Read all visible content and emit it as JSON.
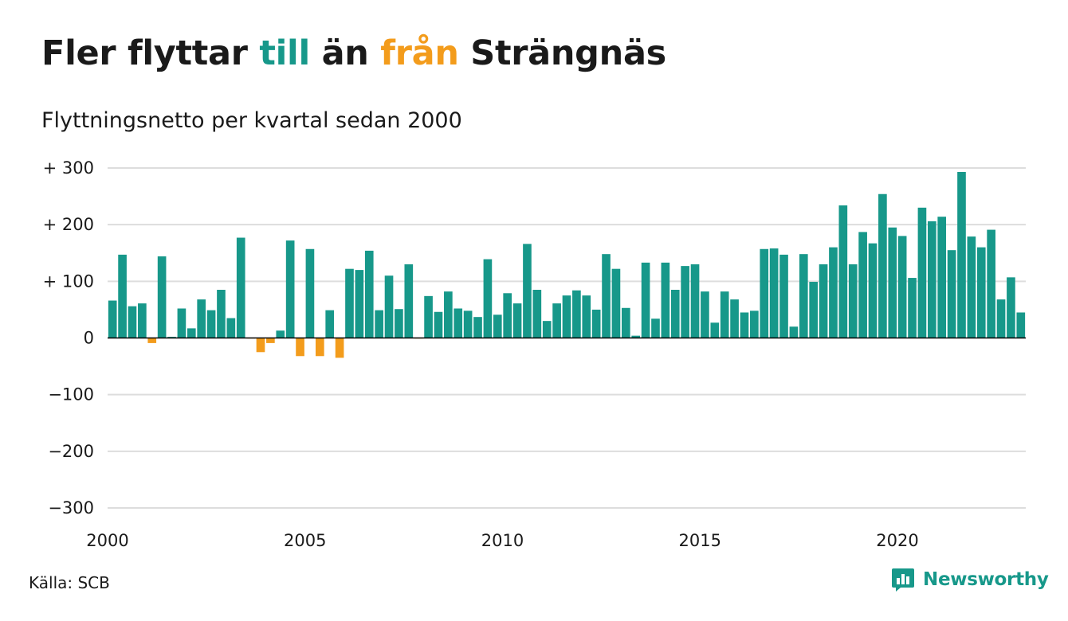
{
  "header": {
    "title_part1": "Fler flyttar ",
    "title_pos": "till",
    "title_part2": " än ",
    "title_neg": "från",
    "title_part3": " Strängnäs",
    "subtitle": "Flyttningsnetto per kvartal sedan 2000"
  },
  "footer": {
    "source": "Källa: SCB",
    "brand": "Newsworthy",
    "brand_icon": "newsworthy-logo-icon"
  },
  "colors": {
    "positive": "#17988a",
    "negative": "#f39c1c",
    "grid": "#dddddd",
    "axis": "#000000",
    "text": "#1a1a1a"
  },
  "chart_data": {
    "type": "bar",
    "title": "Fler flyttar till än från Strängnäs",
    "subtitle": "Flyttningsnetto per kvartal sedan 2000",
    "x_start": "2000 Q1",
    "x_ticks": [
      2000,
      2005,
      2010,
      2015,
      2020
    ],
    "ylim": [
      -300,
      300
    ],
    "y_ticks": [
      {
        "value": 300,
        "label": "+ 300"
      },
      {
        "value": 200,
        "label": "+ 200"
      },
      {
        "value": 100,
        "label": "+ 100"
      },
      {
        "value": 0,
        "label": "0"
      },
      {
        "value": -100,
        "label": "−100"
      },
      {
        "value": -200,
        "label": "−200"
      },
      {
        "value": -300,
        "label": "−300"
      }
    ],
    "grid": true,
    "values": [
      66,
      147,
      56,
      61,
      -9,
      144,
      2,
      52,
      17,
      68,
      49,
      85,
      35,
      177,
      -1,
      -25,
      -9,
      13,
      172,
      -32,
      157,
      -32,
      49,
      -35,
      122,
      120,
      154,
      49,
      110,
      51,
      130,
      -1,
      74,
      46,
      82,
      52,
      48,
      37,
      139,
      41,
      79,
      61,
      166,
      85,
      30,
      61,
      75,
      84,
      75,
      50,
      148,
      122,
      53,
      4,
      133,
      34,
      133,
      85,
      127,
      130,
      82,
      27,
      82,
      68,
      45,
      48,
      157,
      158,
      147,
      20,
      148,
      99,
      130,
      160,
      234,
      130,
      187,
      167,
      254,
      195,
      180,
      106,
      230,
      206,
      214,
      155,
      293,
      179,
      160,
      191,
      68,
      107,
      45
    ]
  }
}
